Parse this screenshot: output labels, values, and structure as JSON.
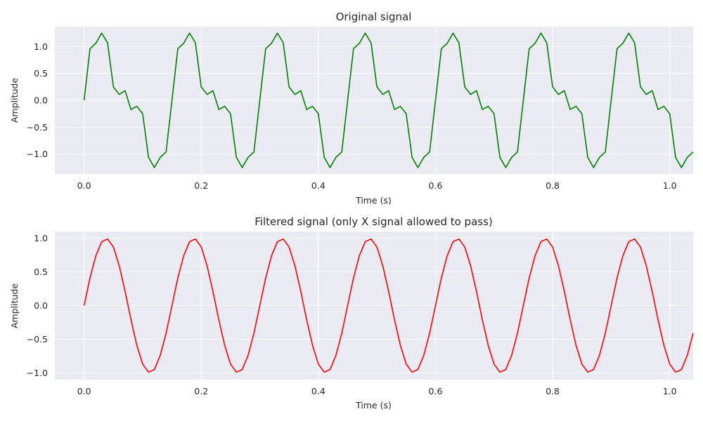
{
  "chart_data": [
    {
      "type": "line",
      "title": "Original signal",
      "xlabel": "Time (s)",
      "ylabel": "Amplitude",
      "xlim": [
        -0.05,
        1.04
      ],
      "ylim": [
        -1.37,
        1.37
      ],
      "xticks": [
        0.0,
        0.2,
        0.4,
        0.6,
        0.8,
        1.0
      ],
      "xtick_labels": [
        "0.0",
        "0.2",
        "0.4",
        "0.6",
        "0.8",
        "1.0"
      ],
      "yticks": [
        -1.0,
        -0.5,
        0.0,
        0.5,
        1.0
      ],
      "ytick_labels": [
        "−1.0",
        "−0.5",
        "0.0",
        "0.5",
        "1.0"
      ],
      "grid": true,
      "color": "#008000",
      "x_start": 0.0,
      "x_step": 0.01,
      "x_end": 0.99,
      "series": [
        {
          "values": [
            0.0,
            0.96,
            1.06,
            1.25,
            1.07,
            0.25,
            0.11,
            0.18,
            -0.17,
            -0.11,
            -0.25,
            -1.06,
            -1.25,
            -1.06,
            -0.96,
            -0.0,
            0.96,
            1.06,
            1.25,
            1.07,
            0.25,
            0.11,
            0.18,
            -0.17,
            -0.11,
            -0.25,
            -1.06,
            -1.25,
            -1.06,
            -0.96,
            -0.0,
            0.96,
            1.06,
            1.25,
            1.07,
            0.25,
            0.11,
            0.18,
            -0.17,
            -0.11,
            -0.25,
            -1.06,
            -1.25,
            -1.06,
            -0.96,
            -0.0,
            0.96,
            1.06,
            1.25,
            1.07,
            0.25,
            0.11,
            0.18,
            -0.17,
            -0.11,
            -0.25,
            -1.06,
            -1.25,
            -1.06,
            -0.96,
            -0.0,
            0.96,
            1.06,
            1.25,
            1.07,
            0.25,
            0.11,
            0.18,
            -0.17,
            -0.11,
            -0.25,
            -1.06,
            -1.25,
            -1.06,
            -0.96,
            -0.0,
            0.96,
            1.06,
            1.25,
            1.07,
            0.25,
            0.11,
            0.18,
            -0.17,
            -0.11,
            -0.25,
            -1.06,
            -1.25,
            -1.06,
            -0.96,
            -0.0,
            0.96,
            1.06,
            1.25,
            1.07,
            0.25,
            0.11,
            0.18,
            -0.17,
            -0.11,
            -0.25,
            -1.06,
            -1.25,
            -1.06,
            -0.96
          ]
        }
      ]
    },
    {
      "type": "line",
      "title": "Filtered signal (only X signal allowed to pass)",
      "xlabel": "Time (s)",
      "ylabel": "Amplitude",
      "xlim": [
        -0.05,
        1.04
      ],
      "ylim": [
        -1.1,
        1.1
      ],
      "xticks": [
        0.0,
        0.2,
        0.4,
        0.6,
        0.8,
        1.0
      ],
      "xtick_labels": [
        "0.0",
        "0.2",
        "0.4",
        "0.6",
        "0.8",
        "1.0"
      ],
      "yticks": [
        -1.0,
        -0.5,
        0.0,
        0.5,
        1.0
      ],
      "ytick_labels": [
        "−1.0",
        "−0.5",
        "0.0",
        "0.5",
        "1.0"
      ],
      "grid": true,
      "color": "#ff0000",
      "x_start": 0.0,
      "x_step": 0.01,
      "x_end": 0.99,
      "series": [
        {
          "values": [
            0.0,
            0.41,
            0.74,
            0.95,
            0.99,
            0.87,
            0.59,
            0.21,
            -0.21,
            -0.59,
            -0.87,
            -0.99,
            -0.95,
            -0.74,
            -0.41,
            -0.0,
            0.41,
            0.74,
            0.95,
            0.99,
            0.87,
            0.59,
            0.21,
            -0.21,
            -0.59,
            -0.87,
            -0.99,
            -0.95,
            -0.74,
            -0.41,
            -0.0,
            0.41,
            0.74,
            0.95,
            0.99,
            0.87,
            0.59,
            0.21,
            -0.21,
            -0.59,
            -0.87,
            -0.99,
            -0.95,
            -0.74,
            -0.41,
            -0.0,
            0.41,
            0.74,
            0.95,
            0.99,
            0.87,
            0.59,
            0.21,
            -0.21,
            -0.59,
            -0.87,
            -0.99,
            -0.95,
            -0.74,
            -0.41,
            -0.0,
            0.41,
            0.74,
            0.95,
            0.99,
            0.87,
            0.59,
            0.21,
            -0.21,
            -0.59,
            -0.87,
            -0.99,
            -0.95,
            -0.74,
            -0.41,
            -0.0,
            0.41,
            0.74,
            0.95,
            0.99,
            0.87,
            0.59,
            0.21,
            -0.21,
            -0.59,
            -0.87,
            -0.99,
            -0.95,
            -0.74,
            -0.41,
            -0.0,
            0.41,
            0.74,
            0.95,
            0.99,
            0.87,
            0.59,
            0.21,
            -0.21,
            -0.59,
            -0.87,
            -0.99,
            -0.95,
            -0.74,
            -0.41
          ]
        }
      ]
    }
  ]
}
